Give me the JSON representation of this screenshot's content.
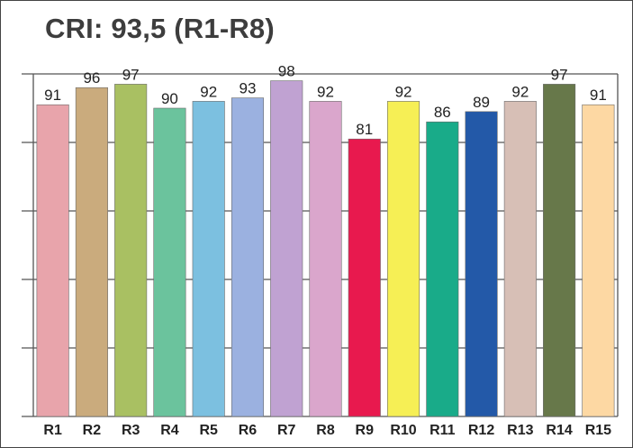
{
  "chart_data": {
    "type": "bar",
    "title": "CRI: 93,5 (R1-R8)",
    "xlabel": "",
    "ylabel": "",
    "ylim": [
      0,
      100
    ],
    "grid": true,
    "legend": "none",
    "categories": [
      "R1",
      "R2",
      "R3",
      "R4",
      "R5",
      "R6",
      "R7",
      "R8",
      "R9",
      "R10",
      "R11",
      "R12",
      "R13",
      "R14",
      "R15"
    ],
    "values": [
      91,
      96,
      97,
      90,
      92,
      93,
      98,
      92,
      81,
      92,
      86,
      89,
      92,
      97,
      91
    ],
    "value_labels": [
      "91",
      "96",
      "97",
      "90",
      "92",
      "93",
      "98",
      "92",
      "81",
      "92",
      "86",
      "89",
      "92",
      "97",
      "91"
    ],
    "colors": [
      "#e8a4ab",
      "#caab7d",
      "#a9c062",
      "#6bc39d",
      "#7cc0e0",
      "#9bb1e0",
      "#c0a2d2",
      "#daa6cc",
      "#e8194e",
      "#f6ef55",
      "#19ab89",
      "#2359a8",
      "#d7bfb6",
      "#67784a",
      "#fdd8a3"
    ],
    "gridline_color": "#555555",
    "label_color": "#222222"
  }
}
